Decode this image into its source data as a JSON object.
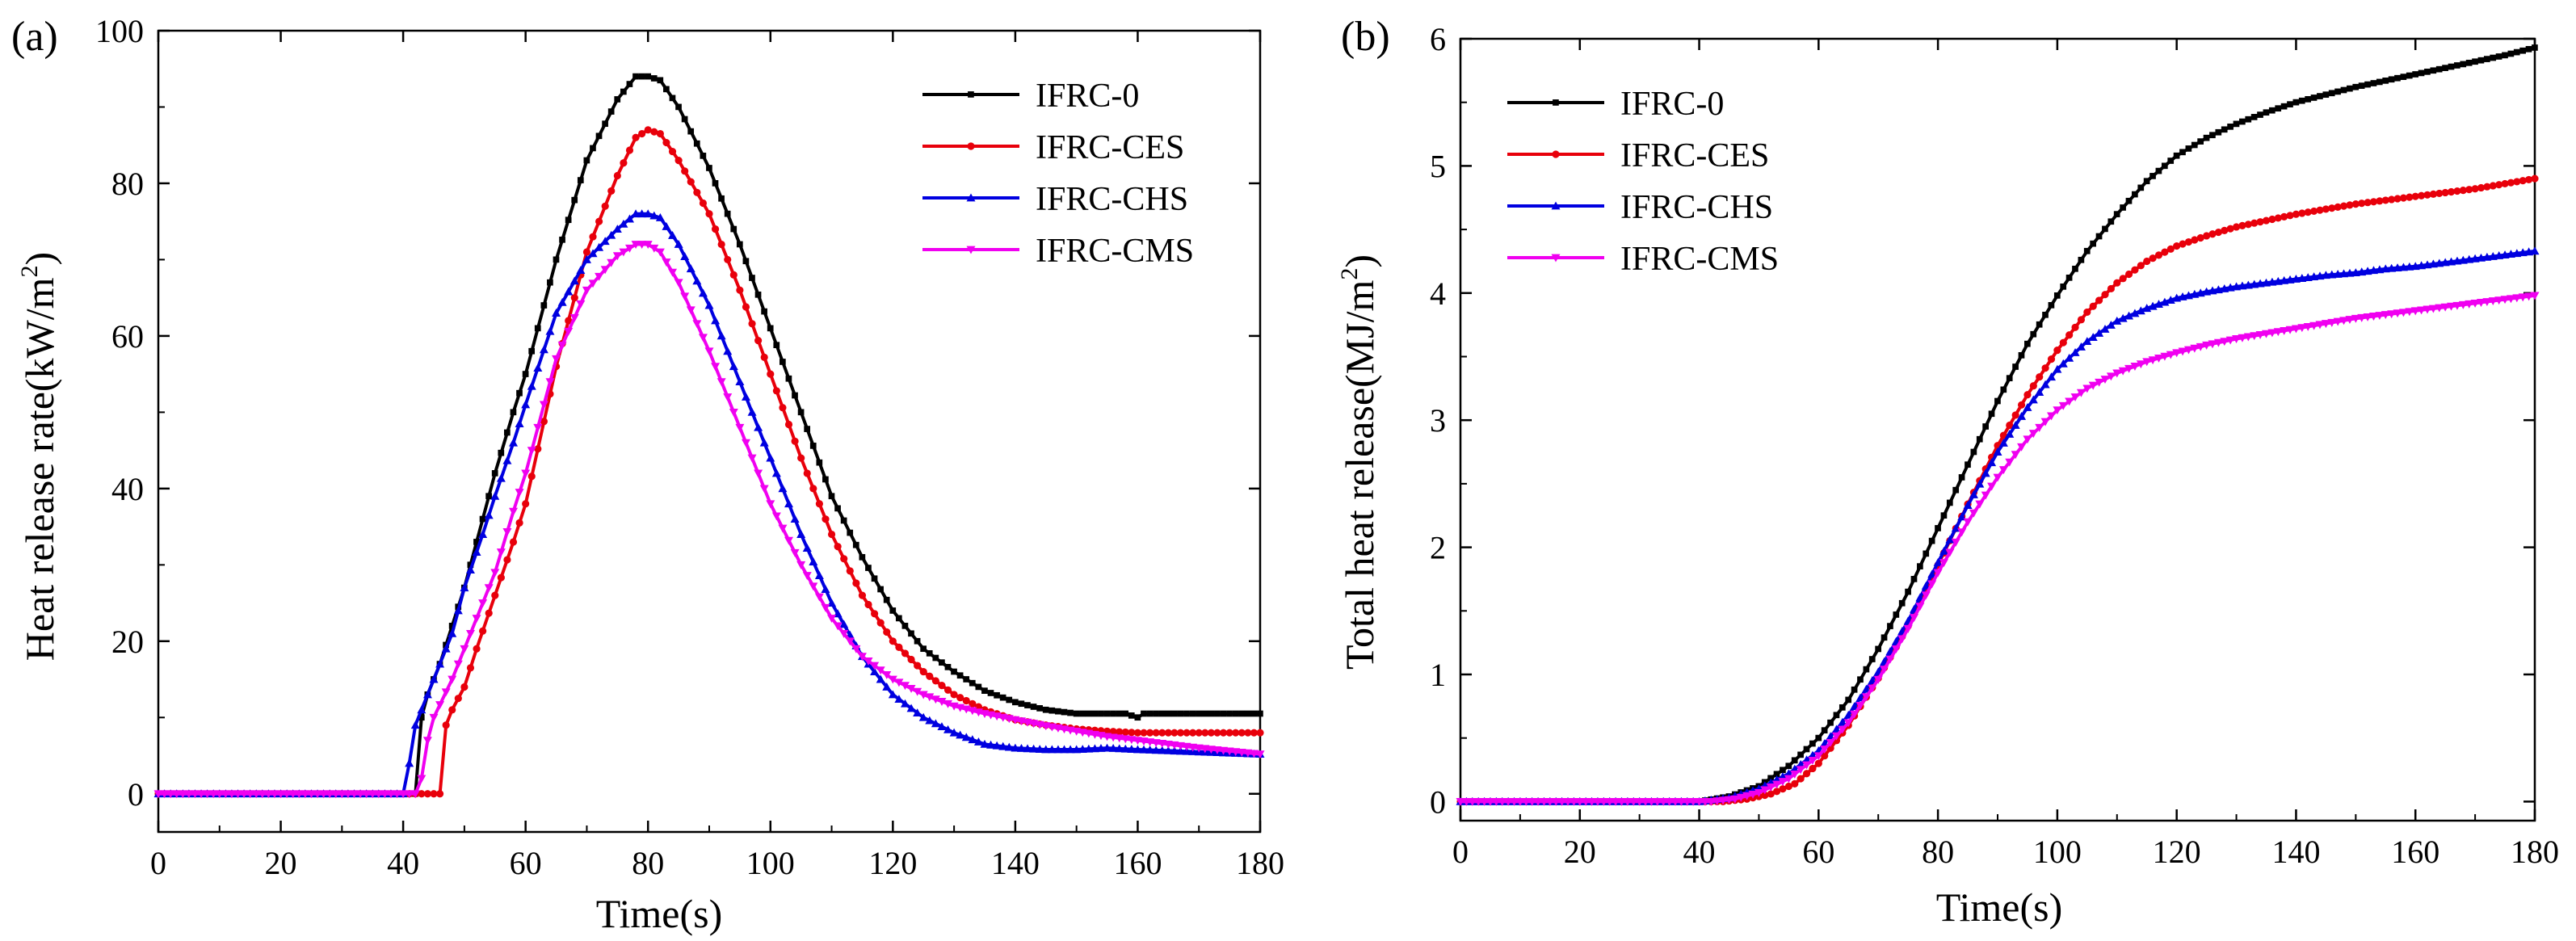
{
  "figure": {
    "colors": {
      "IFRC-0": "#000000",
      "IFRC-CES": "#e8000b",
      "IFRC-CHS": "#0000e0",
      "IFRC-CMS": "#f000f0"
    }
  },
  "chart_data": [
    {
      "id": "a",
      "panel_label": "(a)",
      "type": "line",
      "title": "",
      "xlabel": "Time(s)",
      "ylabel_main": "Heat release rate(kW/m",
      "ylabel_sup": "2",
      "ylabel_close": ")",
      "xlim": [
        0,
        180
      ],
      "ylim": [
        -5,
        100
      ],
      "xticks": [
        0,
        20,
        40,
        60,
        80,
        100,
        120,
        140,
        160,
        180
      ],
      "yticks": [
        0,
        20,
        40,
        60,
        80,
        100
      ],
      "legend_position": "top-right",
      "series": [
        {
          "name": "IFRC-0",
          "color": "#000000",
          "marker": "square",
          "x": [
            0,
            41,
            42,
            43,
            44,
            46,
            48,
            50,
            52,
            55,
            58,
            60,
            65,
            70,
            75,
            78,
            80,
            82,
            85,
            90,
            95,
            100,
            105,
            110,
            115,
            120,
            125,
            130,
            135,
            140,
            145,
            150,
            155,
            158,
            160,
            161,
            170,
            180
          ],
          "y": [
            0,
            0,
            0,
            10,
            13,
            17,
            22,
            27,
            33,
            42,
            50,
            55,
            70,
            83,
            91,
            94,
            94,
            93.5,
            90,
            82,
            72,
            61,
            50,
            39,
            31,
            24,
            19,
            16,
            13.5,
            12,
            11,
            10.5,
            10.5,
            10.5,
            10,
            10.5,
            10.5,
            10.5
          ]
        },
        {
          "name": "IFRC-CES",
          "color": "#e8000b",
          "marker": "circle",
          "x": [
            0,
            44,
            45,
            46,
            47,
            48,
            50,
            52,
            55,
            58,
            60,
            65,
            70,
            75,
            78,
            80,
            82,
            85,
            90,
            95,
            100,
            105,
            110,
            115,
            120,
            125,
            130,
            135,
            140,
            145,
            150,
            155,
            160,
            165,
            170,
            180
          ],
          "y": [
            0,
            0,
            0,
            0,
            9,
            11,
            14,
            19,
            26,
            33,
            38,
            56,
            71,
            81,
            86,
            87,
            86.5,
            83,
            76,
            66,
            55,
            44,
            34,
            26,
            20,
            16,
            13,
            11,
            9.7,
            9,
            8.5,
            8.2,
            8,
            8,
            8,
            8
          ]
        },
        {
          "name": "IFRC-CHS",
          "color": "#0000e0",
          "marker": "triangle",
          "x": [
            0,
            40,
            41,
            42,
            43,
            45,
            48,
            50,
            53,
            55,
            58,
            60,
            65,
            70,
            75,
            78,
            80,
            82,
            85,
            90,
            95,
            100,
            105,
            110,
            115,
            120,
            125,
            130,
            135,
            140,
            145,
            150,
            155,
            160,
            170,
            180
          ],
          "y": [
            0,
            0,
            4,
            9,
            11,
            15,
            21,
            27,
            34,
            39,
            46,
            51,
            63,
            70,
            74,
            76,
            76,
            75.5,
            72,
            64,
            54,
            44,
            34,
            25,
            18,
            13,
            10,
            8,
            6.5,
            6,
            5.8,
            5.8,
            6,
            5.8,
            5.5,
            5.2
          ]
        },
        {
          "name": "IFRC-CMS",
          "color": "#f000f0",
          "marker": "triangle-down",
          "x": [
            0,
            42,
            43,
            44,
            45,
            48,
            50,
            52,
            55,
            58,
            60,
            65,
            70,
            75,
            78,
            80,
            82,
            85,
            90,
            95,
            100,
            105,
            110,
            115,
            120,
            125,
            130,
            135,
            140,
            145,
            150,
            155,
            160,
            170,
            180
          ],
          "y": [
            0,
            0,
            2,
            7,
            10,
            15,
            19,
            23,
            29,
            37,
            42,
            57,
            66,
            70.5,
            72,
            72,
            71,
            67,
            58,
            48,
            38,
            30,
            23,
            18,
            15,
            13,
            11.5,
            10.5,
            9.7,
            8.9,
            8.2,
            7.5,
            7,
            6,
            5.2
          ]
        }
      ]
    },
    {
      "id": "b",
      "panel_label": "(b)",
      "type": "line",
      "title": "",
      "xlabel": "Time(s)",
      "ylabel_main": "Total heat release(MJ/m",
      "ylabel_sup": "2",
      "ylabel_close": ")",
      "xlim": [
        0,
        180
      ],
      "ylim": [
        -0.15,
        6
      ],
      "xticks": [
        0,
        20,
        40,
        60,
        80,
        100,
        120,
        140,
        160,
        180
      ],
      "yticks": [
        0,
        1,
        2,
        3,
        4,
        5,
        6
      ],
      "legend_position": "top-left",
      "series": [
        {
          "name": "IFRC-0",
          "color": "#000000",
          "marker": "square",
          "x": [
            0,
            40,
            45,
            50,
            55,
            60,
            65,
            70,
            75,
            80,
            85,
            90,
            95,
            100,
            105,
            110,
            115,
            120,
            125,
            130,
            135,
            140,
            145,
            150,
            155,
            160,
            165,
            170,
            175,
            180
          ],
          "y": [
            0,
            0,
            0.04,
            0.12,
            0.28,
            0.5,
            0.8,
            1.2,
            1.65,
            2.15,
            2.65,
            3.15,
            3.6,
            3.98,
            4.33,
            4.62,
            4.88,
            5.08,
            5.22,
            5.33,
            5.42,
            5.5,
            5.56,
            5.62,
            5.67,
            5.72,
            5.77,
            5.82,
            5.87,
            5.93
          ]
        },
        {
          "name": "IFRC-CES",
          "color": "#e8000b",
          "marker": "circle",
          "x": [
            0,
            44,
            48,
            52,
            56,
            60,
            65,
            70,
            75,
            80,
            85,
            90,
            95,
            100,
            105,
            110,
            115,
            120,
            125,
            130,
            135,
            140,
            145,
            150,
            155,
            160,
            165,
            170,
            175,
            180
          ],
          "y": [
            0,
            0,
            0.02,
            0.06,
            0.14,
            0.3,
            0.6,
            0.97,
            1.38,
            1.86,
            2.34,
            2.8,
            3.2,
            3.55,
            3.85,
            4.08,
            4.25,
            4.37,
            4.45,
            4.52,
            4.57,
            4.62,
            4.66,
            4.7,
            4.73,
            4.76,
            4.79,
            4.82,
            4.86,
            4.9
          ]
        },
        {
          "name": "IFRC-CHS",
          "color": "#0000e0",
          "marker": "triangle",
          "x": [
            0,
            40,
            45,
            50,
            55,
            60,
            65,
            70,
            75,
            80,
            85,
            90,
            95,
            100,
            105,
            110,
            115,
            120,
            125,
            130,
            135,
            140,
            145,
            150,
            155,
            160,
            165,
            170,
            175,
            180
          ],
          "y": [
            0,
            0,
            0.03,
            0.1,
            0.22,
            0.4,
            0.68,
            1.02,
            1.42,
            1.88,
            2.33,
            2.75,
            3.1,
            3.4,
            3.62,
            3.78,
            3.88,
            3.96,
            4.01,
            4.05,
            4.08,
            4.11,
            4.14,
            4.16,
            4.19,
            4.21,
            4.24,
            4.27,
            4.3,
            4.33
          ]
        },
        {
          "name": "IFRC-CMS",
          "color": "#f000f0",
          "marker": "triangle-down",
          "x": [
            0,
            42,
            46,
            50,
            55,
            60,
            65,
            70,
            75,
            80,
            85,
            90,
            95,
            100,
            105,
            110,
            115,
            120,
            125,
            130,
            135,
            140,
            145,
            150,
            155,
            160,
            165,
            170,
            175,
            180
          ],
          "y": [
            0,
            0,
            0.02,
            0.07,
            0.18,
            0.36,
            0.62,
            0.96,
            1.36,
            1.8,
            2.2,
            2.55,
            2.85,
            3.08,
            3.25,
            3.37,
            3.46,
            3.53,
            3.59,
            3.64,
            3.68,
            3.72,
            3.76,
            3.8,
            3.83,
            3.86,
            3.89,
            3.92,
            3.95,
            3.98
          ]
        }
      ]
    }
  ]
}
